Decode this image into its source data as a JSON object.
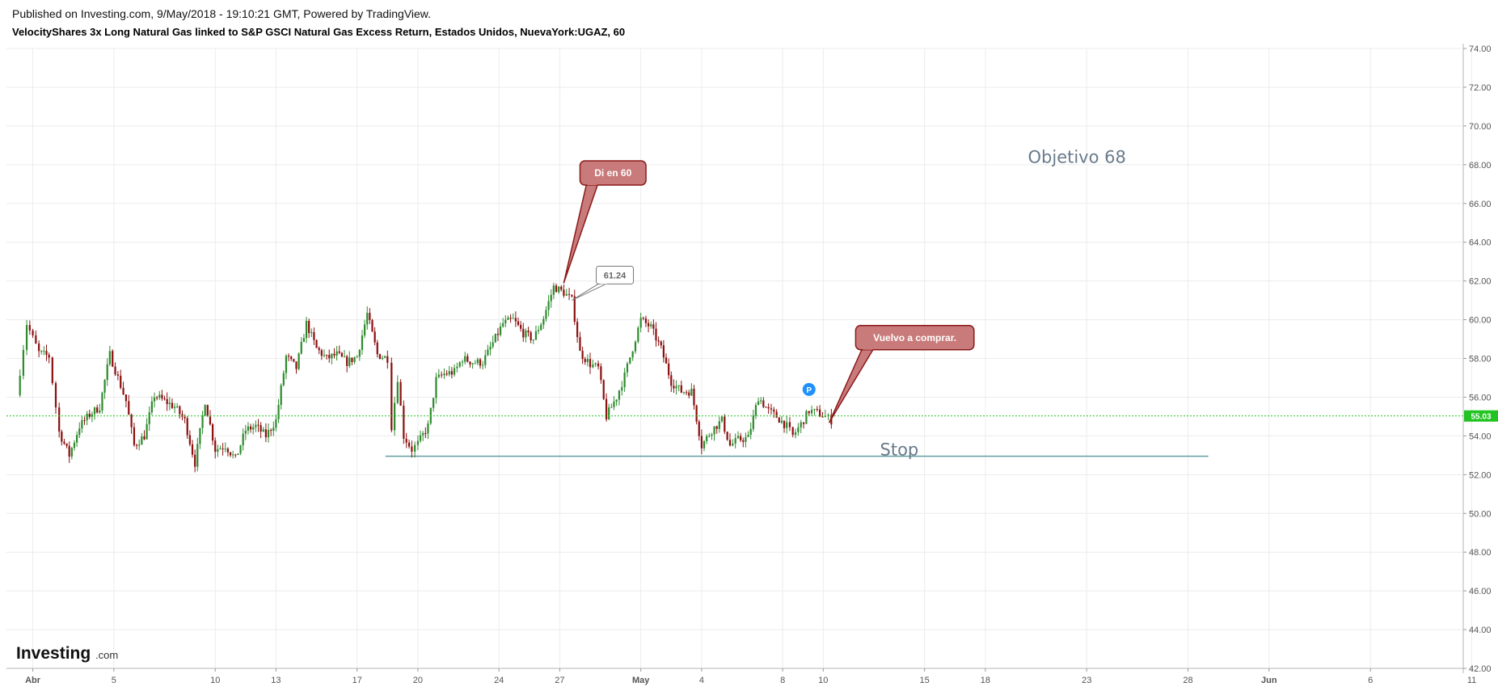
{
  "header": {
    "published": "Published on Investing.com, 9/May/2018 - 19:10:21 GMT, Powered by TradingView.",
    "title": "VelocityShares 3x Long Natural Gas linked to S&P GSCI Natural Gas Excess Return, Estados Unidos, NuevaYork:UGAZ, 60"
  },
  "colors": {
    "up": "#2e8b2e",
    "down": "#8b1010",
    "price_line": "#22c322",
    "stop_line": "#5f9ea0",
    "callout_fill": "#c97a7a",
    "callout_border": "#8b1a1a",
    "grid": "#ececec"
  },
  "logo": {
    "main": "Investing",
    "sub": ".com"
  },
  "chart_data": {
    "type": "candlestick",
    "y_axis": {
      "position": "right",
      "range": [
        42,
        74
      ],
      "ticks": [
        "74.00",
        "72.00",
        "70.00",
        "68.00",
        "66.00",
        "64.00",
        "62.00",
        "60.00",
        "58.00",
        "56.00",
        "54.00",
        "52.00",
        "50.00",
        "48.00",
        "46.00",
        "44.00",
        "42.00"
      ]
    },
    "x_axis": {
      "range_days": [
        -0.3,
        71.5
      ],
      "ticks": [
        {
          "label": "Abr",
          "day": 1,
          "bold": true
        },
        {
          "label": "5",
          "day": 5,
          "bold": false
        },
        {
          "label": "10",
          "day": 10,
          "bold": false
        },
        {
          "label": "13",
          "day": 13,
          "bold": false
        },
        {
          "label": "17",
          "day": 17,
          "bold": false
        },
        {
          "label": "20",
          "day": 20,
          "bold": false
        },
        {
          "label": "24",
          "day": 24,
          "bold": false
        },
        {
          "label": "27",
          "day": 27,
          "bold": false
        },
        {
          "label": "May",
          "day": 31,
          "bold": true
        },
        {
          "label": "4",
          "day": 34,
          "bold": false
        },
        {
          "label": "8",
          "day": 38,
          "bold": false
        },
        {
          "label": "10",
          "day": 40,
          "bold": false
        },
        {
          "label": "15",
          "day": 45,
          "bold": false
        },
        {
          "label": "18",
          "day": 48,
          "bold": false
        },
        {
          "label": "23",
          "day": 53,
          "bold": false
        },
        {
          "label": "28",
          "day": 58,
          "bold": false
        },
        {
          "label": "Jun",
          "day": 62,
          "bold": true
        },
        {
          "label": "6",
          "day": 67,
          "bold": false
        },
        {
          "label": "11",
          "day": 72,
          "bold": false
        }
      ]
    },
    "last_price": {
      "label": "55.03",
      "value": 55.03
    },
    "price_path": [
      [
        0.2,
        56.1
      ],
      [
        0.7,
        59.8
      ],
      [
        1.3,
        58.3
      ],
      [
        1.8,
        58.1
      ],
      [
        2.3,
        54.2
      ],
      [
        2.8,
        53.0
      ],
      [
        3.3,
        54.5
      ],
      [
        3.8,
        55.1
      ],
      [
        4.3,
        55.5
      ],
      [
        4.8,
        58.2
      ],
      [
        5.2,
        57.0
      ],
      [
        5.6,
        55.8
      ],
      [
        6.0,
        53.5
      ],
      [
        6.5,
        54.0
      ],
      [
        7.0,
        56.1
      ],
      [
        7.5,
        55.8
      ],
      [
        8.0,
        55.5
      ],
      [
        8.5,
        54.8
      ],
      [
        9.0,
        52.6
      ],
      [
        9.5,
        55.8
      ],
      [
        10.0,
        53.3
      ],
      [
        10.5,
        53.5
      ],
      [
        11.0,
        52.8
      ],
      [
        11.5,
        54.3
      ],
      [
        12.0,
        54.5
      ],
      [
        12.5,
        54.0
      ],
      [
        13.0,
        54.8
      ],
      [
        13.5,
        58.1
      ],
      [
        14.0,
        57.5
      ],
      [
        14.5,
        59.8
      ],
      [
        15.0,
        58.5
      ],
      [
        15.5,
        58.0
      ],
      [
        16.0,
        58.2
      ],
      [
        16.5,
        57.8
      ],
      [
        17.0,
        58.1
      ],
      [
        17.5,
        60.3
      ],
      [
        18.0,
        58.2
      ],
      [
        18.5,
        58.0
      ],
      [
        18.7,
        54.5
      ],
      [
        19.0,
        57.0
      ],
      [
        19.3,
        54.0
      ],
      [
        19.7,
        53.3
      ],
      [
        20.0,
        53.6
      ],
      [
        20.5,
        54.5
      ],
      [
        20.9,
        56.9
      ],
      [
        21.3,
        57.2
      ],
      [
        21.8,
        57.3
      ],
      [
        22.2,
        58.0
      ],
      [
        22.7,
        57.8
      ],
      [
        23.2,
        57.8
      ],
      [
        23.7,
        58.8
      ],
      [
        24.2,
        59.8
      ],
      [
        24.7,
        60.0
      ],
      [
        25.2,
        59.3
      ],
      [
        25.7,
        59.0
      ],
      [
        26.2,
        60.1
      ],
      [
        26.7,
        61.7
      ],
      [
        27.2,
        61.4
      ],
      [
        27.6,
        61.0
      ],
      [
        28.0,
        58.3
      ],
      [
        28.5,
        57.7
      ],
      [
        28.9,
        57.5
      ],
      [
        29.3,
        55.0
      ],
      [
        29.8,
        56.0
      ],
      [
        30.2,
        57.1
      ],
      [
        31.0,
        60.0
      ],
      [
        31.5,
        59.6
      ],
      [
        32.0,
        58.5
      ],
      [
        32.5,
        56.8
      ],
      [
        33.0,
        56.3
      ],
      [
        33.5,
        56.3
      ],
      [
        34.0,
        53.5
      ],
      [
        34.5,
        54.3
      ],
      [
        35.0,
        54.8
      ],
      [
        35.4,
        53.5
      ],
      [
        35.8,
        53.8
      ],
      [
        36.3,
        53.9
      ],
      [
        36.8,
        56.0
      ],
      [
        37.3,
        55.3
      ],
      [
        37.7,
        55.0
      ],
      [
        38.2,
        54.5
      ],
      [
        38.5,
        54.0
      ],
      [
        38.9,
        54.6
      ],
      [
        39.3,
        55.3
      ],
      [
        39.7,
        55.2
      ],
      [
        40.1,
        55.0
      ],
      [
        40.4,
        54.8
      ]
    ],
    "annotations": [
      {
        "type": "callout",
        "text": "Di en 60",
        "anchor_day": 27.2,
        "anchor_value": 61.9,
        "box_day": 28.0,
        "box_value": 68.2
      },
      {
        "type": "price_label",
        "text": "61.24",
        "anchor_day": 27.6,
        "anchor_value": 61.0,
        "box_day": 28.8,
        "box_value": 62.3
      },
      {
        "type": "callout",
        "text": "Vuelvo a comprar.",
        "anchor_day": 40.3,
        "anchor_value": 54.7,
        "box_day": 41.6,
        "box_value": 59.7
      },
      {
        "type": "text",
        "text": "Objetivo 68",
        "day": 50.1,
        "value": 68.1
      },
      {
        "type": "text",
        "text": "Stop",
        "day": 42.8,
        "value": 53.0
      },
      {
        "type": "hline",
        "label": "stop-line",
        "value": 52.95,
        "day_from": 18.4,
        "day_to": 59.0
      },
      {
        "type": "marker",
        "text": "P",
        "day": 39.3,
        "value": 56.4
      }
    ]
  }
}
